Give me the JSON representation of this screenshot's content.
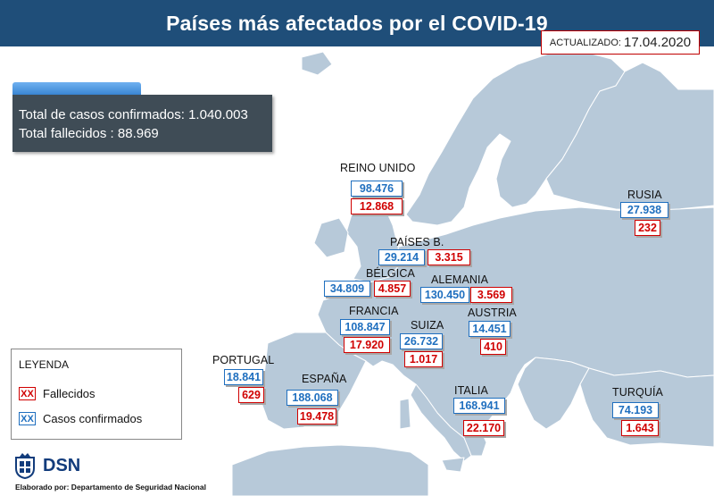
{
  "title": "Países más afectados por el COVID-19",
  "updated": {
    "label": "ACTUALIZADO:",
    "date": "17.04.2020"
  },
  "totals": {
    "confirmed": "Total de casos confirmados: 1.040.003",
    "deaths": "Total fallecidos : 88.969"
  },
  "colors": {
    "header": "#1f4e79",
    "land": "#b7c9d9",
    "cases": "#1f6fbf",
    "deaths": "#d00000",
    "totals_box": "#3f4c56"
  },
  "countries": [
    {
      "name": "REINO UNIDO",
      "cases": "98.476",
      "deaths": "12.868"
    },
    {
      "name": "RUSIA",
      "cases": "27.938",
      "deaths": "232"
    },
    {
      "name": "PAÍSES B.",
      "cases": "29.214",
      "deaths": "3.315"
    },
    {
      "name": "BÉLGICA",
      "cases": "34.809",
      "deaths": "4.857"
    },
    {
      "name": "ALEMANIA",
      "cases": "130.450",
      "deaths": "3.569"
    },
    {
      "name": "FRANCIA",
      "cases": "108.847",
      "deaths": "17.920"
    },
    {
      "name": "SUIZA",
      "cases": "26.732",
      "deaths": "1.017"
    },
    {
      "name": "AUSTRIA",
      "cases": "14.451",
      "deaths": "410"
    },
    {
      "name": "PORTUGAL",
      "cases": "18.841",
      "deaths": "629"
    },
    {
      "name": "ESPAÑA",
      "cases": "188.068",
      "deaths": "19.478"
    },
    {
      "name": "ITALIA",
      "cases": "168.941",
      "deaths": "22.170"
    },
    {
      "name": "TURQUÍA",
      "cases": "74.193",
      "deaths": "1.643"
    }
  ],
  "legend": {
    "title": "LEYENDA",
    "swatch_text": "XX",
    "deaths_label": "Fallecidos",
    "cases_label": "Casos confirmados"
  },
  "logo": {
    "text": "DSN",
    "icon": "coat-of-arms-icon"
  },
  "credit": "Elaborado por: Departamento de Seguridad Nacional"
}
